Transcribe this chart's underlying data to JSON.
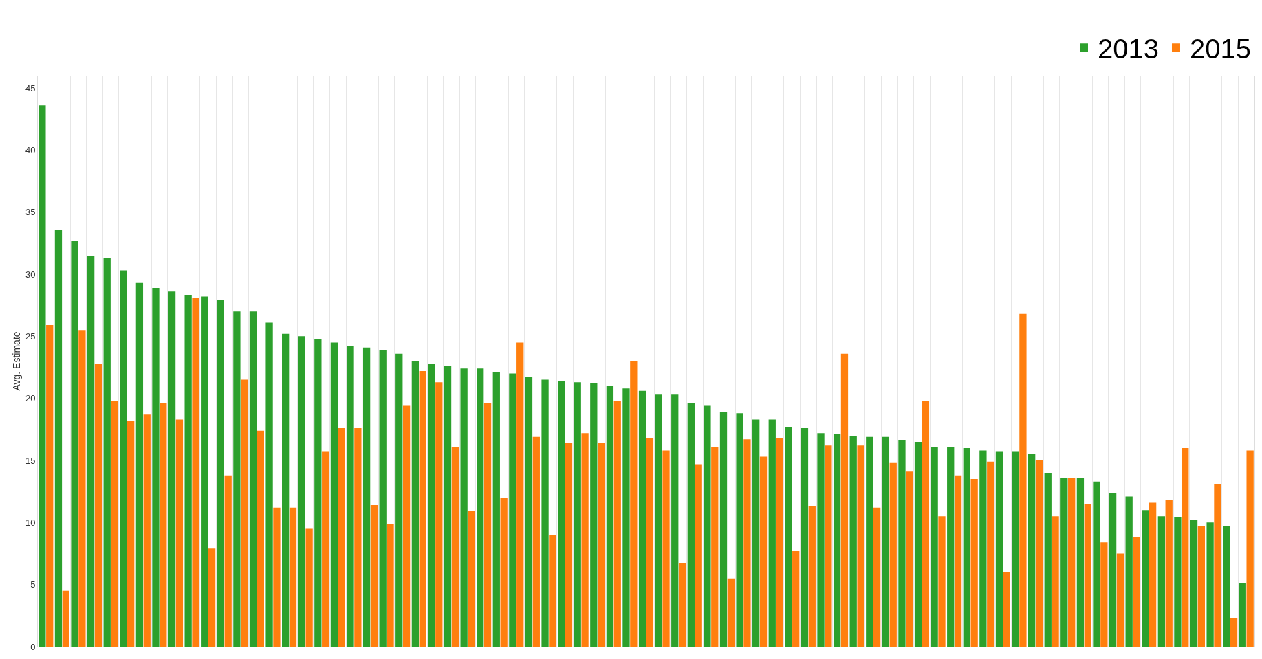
{
  "chart_data": {
    "type": "bar",
    "ylabel": "Avg. Estimate",
    "categories": [
      null,
      null,
      null,
      null,
      null,
      null,
      null,
      null,
      null,
      null,
      null,
      null,
      null,
      null,
      null,
      null,
      null,
      null,
      null,
      null,
      null,
      null,
      null,
      null,
      null,
      null,
      null,
      null,
      null,
      null,
      null,
      null,
      null,
      null,
      null,
      null,
      null,
      null,
      null,
      null,
      null,
      null,
      null,
      null,
      null,
      null,
      null,
      null,
      null,
      null,
      null,
      null,
      null,
      null,
      null,
      null,
      null,
      null,
      null,
      null,
      null,
      null,
      null,
      null,
      null,
      null,
      null,
      null,
      null,
      null,
      null,
      null,
      null,
      null,
      null
    ],
    "series": [
      {
        "name": "2013",
        "color": "#2ca02c",
        "values": [
          43.6,
          33.6,
          32.7,
          31.5,
          31.3,
          30.3,
          29.3,
          28.9,
          28.6,
          28.3,
          28.2,
          27.9,
          27.0,
          27.0,
          26.1,
          25.2,
          25.0,
          24.8,
          24.5,
          24.2,
          24.1,
          23.9,
          23.6,
          23.0,
          22.8,
          22.6,
          22.4,
          22.4,
          22.1,
          22.0,
          21.7,
          21.5,
          21.4,
          21.3,
          21.2,
          21.0,
          20.8,
          20.6,
          20.3,
          20.3,
          19.6,
          19.4,
          18.9,
          18.8,
          18.3,
          18.3,
          17.7,
          17.6,
          17.2,
          17.1,
          17.0,
          16.9,
          16.9,
          16.6,
          16.5,
          16.1,
          16.1,
          16.0,
          15.8,
          15.7,
          15.7,
          15.5,
          14.0,
          13.6,
          13.6,
          13.3,
          12.4,
          12.1,
          11.0,
          10.5,
          10.4,
          10.2,
          10.0,
          9.7,
          5.1
        ]
      },
      {
        "name": "2015",
        "color": "#ff7f0e",
        "values": [
          25.9,
          4.5,
          25.5,
          22.8,
          19.8,
          18.2,
          18.7,
          19.6,
          18.3,
          28.1,
          7.9,
          13.8,
          21.5,
          17.4,
          11.2,
          11.2,
          9.5,
          15.7,
          17.6,
          17.6,
          11.4,
          9.9,
          19.4,
          22.2,
          21.3,
          16.1,
          10.9,
          19.6,
          12.0,
          24.5,
          16.9,
          9.0,
          16.4,
          17.2,
          16.4,
          19.8,
          23.0,
          16.8,
          15.8,
          6.7,
          14.7,
          16.1,
          5.5,
          16.7,
          15.3,
          16.8,
          7.7,
          11.3,
          16.2,
          23.6,
          16.2,
          11.2,
          14.8,
          14.1,
          19.8,
          10.5,
          13.8,
          13.5,
          14.9,
          6.0,
          26.8,
          15.0,
          10.5,
          13.6,
          11.5,
          8.4,
          7.5,
          8.8,
          11.6,
          11.8,
          16.0,
          9.7,
          13.1,
          2.3,
          15.8
        ]
      }
    ],
    "ylim": [
      0,
      46
    ],
    "yticks": [
      0,
      5,
      10,
      15,
      20,
      25,
      30,
      35,
      40,
      45
    ],
    "grid": "x",
    "legend": "top right"
  }
}
